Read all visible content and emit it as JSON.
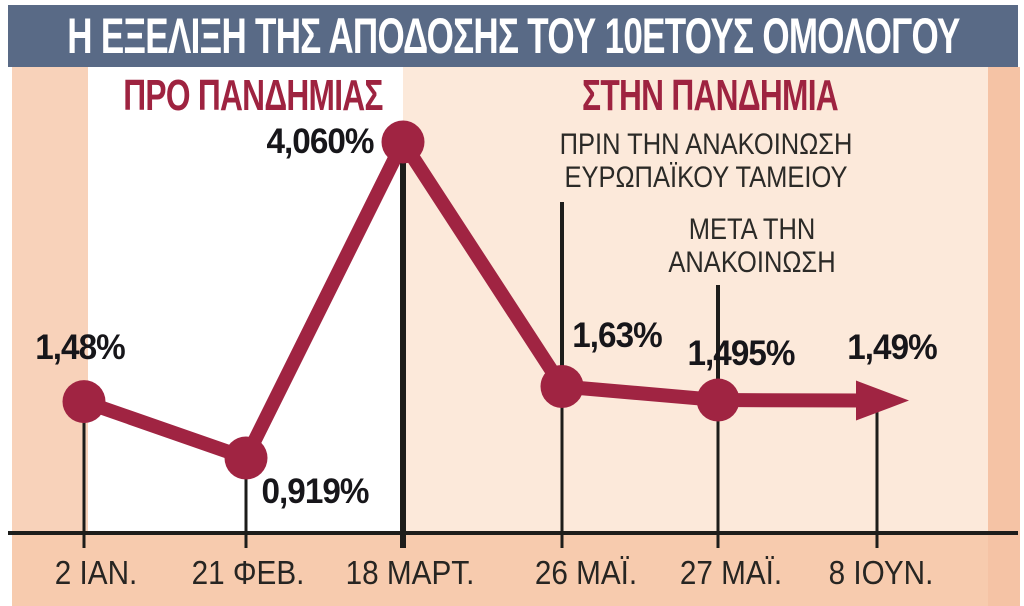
{
  "page": {
    "title": "Η ΕΞΕΛΙΞΗ ΤΗΣ ΑΠΟΔΟΣΗΣ ΤΟΥ 10ΕΤΟΥΣ ΟΜΟΛΟΓΟΥ"
  },
  "sections": {
    "pre_pandemic": "ΠΡΟ ΠΑΝΔΗΜΙΑΣ",
    "in_pandemic": "ΣΤΗΝ ΠΑΝΔΗΜΙΑ"
  },
  "annotations": {
    "before_announcement_line1": "ΠΡΙΝ ΤΗΝ ΑΝΑΚΟΙΝΩΣΗ",
    "before_announcement_line2": "ΕΥΡΩΠΑΪΚΟΥ ΤΑΜΕΙΟΥ",
    "after_announcement_line1": "ΜΕΤΑ ΤΗΝ",
    "after_announcement_line2": "ΑΝΑΚΟΙΝΩΣΗ"
  },
  "colors": {
    "header_bg": "#596a86",
    "accent_red": "#a02442",
    "section_label_red": "#9e2340",
    "pre_panel_bg": "#ffffff",
    "pandemic_panel_bg": "#fce9da",
    "left_strip_bg": "#f8d2ba",
    "right_strip_bg": "#f5c3a5",
    "bottom_strip_bg": "#f7cbae",
    "line_black": "#1d1d1b"
  },
  "chart_data": {
    "type": "line",
    "title": "Η ΕΞΕΛΙΞΗ ΤΗΣ ΑΠΟΔΟΣΗΣ ΤΟΥ 10ΕΤΟΥΣ ΟΜΟΛΟΓΟΥ",
    "categories": [
      "2 ΙΑΝ.",
      "21 ΦΕΒ.",
      "18 ΜΑΡΤ.",
      "26 ΜΑΪ.",
      "27 ΜΑΪ.",
      "8 ΙΟΥΝ."
    ],
    "values": [
      1.48,
      0.919,
      4.06,
      1.63,
      1.495,
      1.49
    ],
    "value_labels": [
      "1,48%",
      "0,919%",
      "4,060%",
      "1,63%",
      "1,495%",
      "1,49%"
    ],
    "unit": "%",
    "ylim": [
      0.5,
      4.5
    ],
    "grid": false,
    "legend": "none",
    "last_point_style": "arrow"
  }
}
